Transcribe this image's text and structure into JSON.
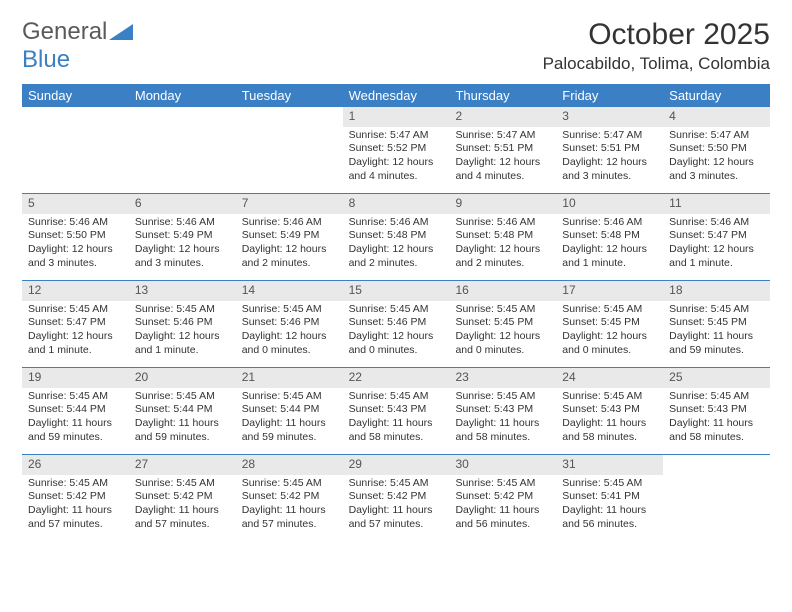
{
  "logo": {
    "text_a": "General",
    "text_b": "Blue",
    "triangle_color": "#3b7fc4",
    "text_a_color": "#5a5a5a",
    "text_b_color": "#3b7fc4"
  },
  "title": {
    "month": "October 2025",
    "location": "Palocabildo, Tolima, Colombia"
  },
  "style": {
    "header_bg": "#3b7fc4",
    "header_fg": "#ffffff",
    "daynum_bg": "#e9e9e9",
    "daynum_fg": "#555555",
    "rule_color": "#3b7fc4",
    "body_bg": "#ffffff",
    "text_color": "#333333",
    "font_family": "Arial, Helvetica, sans-serif",
    "title_fontsize": 30,
    "location_fontsize": 17,
    "dayheader_fontsize": 13,
    "daynum_fontsize": 12,
    "body_fontsize": 10.5
  },
  "day_headers": [
    "Sunday",
    "Monday",
    "Tuesday",
    "Wednesday",
    "Thursday",
    "Friday",
    "Saturday"
  ],
  "weeks": [
    [
      {
        "n": "",
        "sunrise": "",
        "sunset": "",
        "daylight": ""
      },
      {
        "n": "",
        "sunrise": "",
        "sunset": "",
        "daylight": ""
      },
      {
        "n": "",
        "sunrise": "",
        "sunset": "",
        "daylight": ""
      },
      {
        "n": "1",
        "sunrise": "Sunrise: 5:47 AM",
        "sunset": "Sunset: 5:52 PM",
        "daylight": "Daylight: 12 hours and 4 minutes."
      },
      {
        "n": "2",
        "sunrise": "Sunrise: 5:47 AM",
        "sunset": "Sunset: 5:51 PM",
        "daylight": "Daylight: 12 hours and 4 minutes."
      },
      {
        "n": "3",
        "sunrise": "Sunrise: 5:47 AM",
        "sunset": "Sunset: 5:51 PM",
        "daylight": "Daylight: 12 hours and 3 minutes."
      },
      {
        "n": "4",
        "sunrise": "Sunrise: 5:47 AM",
        "sunset": "Sunset: 5:50 PM",
        "daylight": "Daylight: 12 hours and 3 minutes."
      }
    ],
    [
      {
        "n": "5",
        "sunrise": "Sunrise: 5:46 AM",
        "sunset": "Sunset: 5:50 PM",
        "daylight": "Daylight: 12 hours and 3 minutes."
      },
      {
        "n": "6",
        "sunrise": "Sunrise: 5:46 AM",
        "sunset": "Sunset: 5:49 PM",
        "daylight": "Daylight: 12 hours and 3 minutes."
      },
      {
        "n": "7",
        "sunrise": "Sunrise: 5:46 AM",
        "sunset": "Sunset: 5:49 PM",
        "daylight": "Daylight: 12 hours and 2 minutes."
      },
      {
        "n": "8",
        "sunrise": "Sunrise: 5:46 AM",
        "sunset": "Sunset: 5:48 PM",
        "daylight": "Daylight: 12 hours and 2 minutes."
      },
      {
        "n": "9",
        "sunrise": "Sunrise: 5:46 AM",
        "sunset": "Sunset: 5:48 PM",
        "daylight": "Daylight: 12 hours and 2 minutes."
      },
      {
        "n": "10",
        "sunrise": "Sunrise: 5:46 AM",
        "sunset": "Sunset: 5:48 PM",
        "daylight": "Daylight: 12 hours and 1 minute."
      },
      {
        "n": "11",
        "sunrise": "Sunrise: 5:46 AM",
        "sunset": "Sunset: 5:47 PM",
        "daylight": "Daylight: 12 hours and 1 minute."
      }
    ],
    [
      {
        "n": "12",
        "sunrise": "Sunrise: 5:45 AM",
        "sunset": "Sunset: 5:47 PM",
        "daylight": "Daylight: 12 hours and 1 minute."
      },
      {
        "n": "13",
        "sunrise": "Sunrise: 5:45 AM",
        "sunset": "Sunset: 5:46 PM",
        "daylight": "Daylight: 12 hours and 1 minute."
      },
      {
        "n": "14",
        "sunrise": "Sunrise: 5:45 AM",
        "sunset": "Sunset: 5:46 PM",
        "daylight": "Daylight: 12 hours and 0 minutes."
      },
      {
        "n": "15",
        "sunrise": "Sunrise: 5:45 AM",
        "sunset": "Sunset: 5:46 PM",
        "daylight": "Daylight: 12 hours and 0 minutes."
      },
      {
        "n": "16",
        "sunrise": "Sunrise: 5:45 AM",
        "sunset": "Sunset: 5:45 PM",
        "daylight": "Daylight: 12 hours and 0 minutes."
      },
      {
        "n": "17",
        "sunrise": "Sunrise: 5:45 AM",
        "sunset": "Sunset: 5:45 PM",
        "daylight": "Daylight: 12 hours and 0 minutes."
      },
      {
        "n": "18",
        "sunrise": "Sunrise: 5:45 AM",
        "sunset": "Sunset: 5:45 PM",
        "daylight": "Daylight: 11 hours and 59 minutes."
      }
    ],
    [
      {
        "n": "19",
        "sunrise": "Sunrise: 5:45 AM",
        "sunset": "Sunset: 5:44 PM",
        "daylight": "Daylight: 11 hours and 59 minutes."
      },
      {
        "n": "20",
        "sunrise": "Sunrise: 5:45 AM",
        "sunset": "Sunset: 5:44 PM",
        "daylight": "Daylight: 11 hours and 59 minutes."
      },
      {
        "n": "21",
        "sunrise": "Sunrise: 5:45 AM",
        "sunset": "Sunset: 5:44 PM",
        "daylight": "Daylight: 11 hours and 59 minutes."
      },
      {
        "n": "22",
        "sunrise": "Sunrise: 5:45 AM",
        "sunset": "Sunset: 5:43 PM",
        "daylight": "Daylight: 11 hours and 58 minutes."
      },
      {
        "n": "23",
        "sunrise": "Sunrise: 5:45 AM",
        "sunset": "Sunset: 5:43 PM",
        "daylight": "Daylight: 11 hours and 58 minutes."
      },
      {
        "n": "24",
        "sunrise": "Sunrise: 5:45 AM",
        "sunset": "Sunset: 5:43 PM",
        "daylight": "Daylight: 11 hours and 58 minutes."
      },
      {
        "n": "25",
        "sunrise": "Sunrise: 5:45 AM",
        "sunset": "Sunset: 5:43 PM",
        "daylight": "Daylight: 11 hours and 58 minutes."
      }
    ],
    [
      {
        "n": "26",
        "sunrise": "Sunrise: 5:45 AM",
        "sunset": "Sunset: 5:42 PM",
        "daylight": "Daylight: 11 hours and 57 minutes."
      },
      {
        "n": "27",
        "sunrise": "Sunrise: 5:45 AM",
        "sunset": "Sunset: 5:42 PM",
        "daylight": "Daylight: 11 hours and 57 minutes."
      },
      {
        "n": "28",
        "sunrise": "Sunrise: 5:45 AM",
        "sunset": "Sunset: 5:42 PM",
        "daylight": "Daylight: 11 hours and 57 minutes."
      },
      {
        "n": "29",
        "sunrise": "Sunrise: 5:45 AM",
        "sunset": "Sunset: 5:42 PM",
        "daylight": "Daylight: 11 hours and 57 minutes."
      },
      {
        "n": "30",
        "sunrise": "Sunrise: 5:45 AM",
        "sunset": "Sunset: 5:42 PM",
        "daylight": "Daylight: 11 hours and 56 minutes."
      },
      {
        "n": "31",
        "sunrise": "Sunrise: 5:45 AM",
        "sunset": "Sunset: 5:41 PM",
        "daylight": "Daylight: 11 hours and 56 minutes."
      },
      {
        "n": "",
        "sunrise": "",
        "sunset": "",
        "daylight": ""
      }
    ]
  ]
}
